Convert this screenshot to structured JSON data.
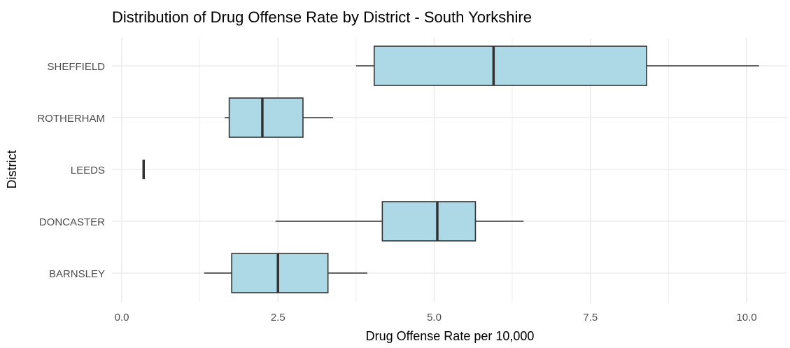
{
  "chart_data": {
    "type": "boxplot",
    "orientation": "horizontal",
    "title": "Distribution of Drug Offense Rate by District - South Yorkshire",
    "xlabel": "Drug Offense Rate per 10,000",
    "ylabel": "District",
    "xlim": [
      -0.2,
      10.5
    ],
    "x_ticks": [
      0.0,
      2.5,
      5.0,
      7.5,
      10.0
    ],
    "x_tick_labels": [
      "0.0",
      "2.5",
      "5.0",
      "7.5",
      "10.0"
    ],
    "grid": true,
    "legend": "none",
    "colors": {
      "box_fill": "#add8e6",
      "box_stroke": "#333333",
      "grid_major": "#ebebeb",
      "grid_minor": "#f3f3f3",
      "text": "#4d4d4d",
      "title": "#000000"
    },
    "categories": [
      "BARNSLEY",
      "DONCASTER",
      "LEEDS",
      "ROTHERHAM",
      "SHEFFIELD"
    ],
    "boxes": [
      {
        "category": "BARNSLEY",
        "min": 1.32,
        "q1": 1.76,
        "median": 2.5,
        "q3": 3.3,
        "max": 3.93
      },
      {
        "category": "DONCASTER",
        "min": 2.46,
        "q1": 4.17,
        "median": 5.05,
        "q3": 5.66,
        "max": 6.43
      },
      {
        "category": "LEEDS",
        "min": 0.35,
        "q1": 0.35,
        "median": 0.35,
        "q3": 0.35,
        "max": 0.35
      },
      {
        "category": "ROTHERHAM",
        "min": 1.65,
        "q1": 1.72,
        "median": 2.25,
        "q3": 2.9,
        "max": 3.38
      },
      {
        "category": "SHEFFIELD",
        "min": 3.75,
        "q1": 4.04,
        "median": 5.95,
        "q3": 8.4,
        "max": 10.2
      }
    ]
  }
}
